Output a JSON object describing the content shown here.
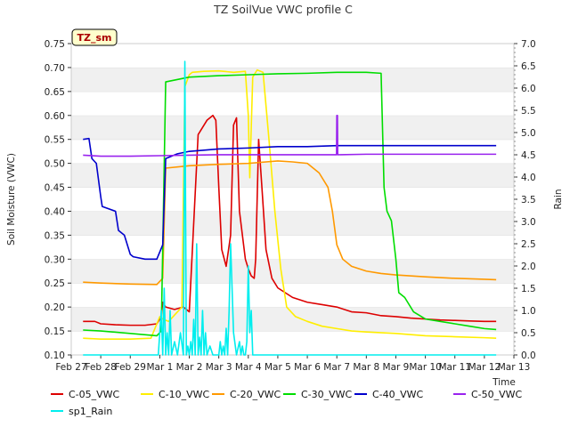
{
  "chart_data": {
    "type": "line",
    "title": "TZ SoilVue VWC profile C",
    "ylabel": "Soil Moisture (VWC)",
    "y2label": "Rain",
    "xlabel": "Time",
    "badge": "TZ_sm",
    "ylim": [
      0.1,
      0.75
    ],
    "y2lim": [
      0.0,
      7.0
    ],
    "xlim": [
      0,
      15
    ],
    "x_ticks": [
      {
        "v": 0,
        "label": "Feb 27"
      },
      {
        "v": 1,
        "label": "Feb 28"
      },
      {
        "v": 2,
        "label": "Feb 29"
      },
      {
        "v": 3,
        "label": "Mar 1"
      },
      {
        "v": 4,
        "label": "Mar 2"
      },
      {
        "v": 5,
        "label": "Mar 3"
      },
      {
        "v": 6,
        "label": "Mar 4"
      },
      {
        "v": 7,
        "label": "Mar 5"
      },
      {
        "v": 8,
        "label": "Mar 6"
      },
      {
        "v": 9,
        "label": "Mar 7"
      },
      {
        "v": 10,
        "label": "Mar 8"
      },
      {
        "v": 11,
        "label": "Mar 9"
      },
      {
        "v": 12,
        "label": "Mar 10"
      },
      {
        "v": 13,
        "label": "Mar 11"
      },
      {
        "v": 14,
        "label": "Mar 12"
      },
      {
        "v": 15,
        "label": "Mar 13"
      }
    ],
    "y_ticks": [
      "0.10",
      "0.15",
      "0.20",
      "0.25",
      "0.30",
      "0.35",
      "0.40",
      "0.45",
      "0.50",
      "0.55",
      "0.60",
      "0.65",
      "0.70",
      "0.75"
    ],
    "y2_ticks": [
      "0.0",
      "0.5",
      "1.0",
      "1.5",
      "2.0",
      "2.5",
      "3.0",
      "3.5",
      "4.0",
      "4.5",
      "5.0",
      "5.5",
      "6.0",
      "6.5",
      "7.0"
    ],
    "grid": "horizontal bands",
    "legend_position": "bottom",
    "series": [
      {
        "name": "C-05_VWC",
        "color": "#dd0000",
        "axis": "left",
        "x": [
          0.4,
          0.8,
          1.0,
          1.5,
          2.0,
          2.5,
          2.9,
          3.05,
          3.1,
          3.2,
          3.5,
          3.8,
          4.0,
          4.3,
          4.6,
          4.8,
          4.9,
          5.0,
          5.1,
          5.25,
          5.4,
          5.5,
          5.6,
          5.7,
          5.9,
          6.0,
          6.1,
          6.2,
          6.25,
          6.35,
          6.45,
          6.6,
          6.8,
          7.0,
          7.5,
          8.0,
          8.5,
          9.0,
          9.5,
          10.0,
          10.5,
          11.0,
          11.5,
          12.0,
          12.5,
          13.0,
          13.5,
          14.0,
          14.4
        ],
        "y": [
          0.17,
          0.17,
          0.165,
          0.163,
          0.162,
          0.162,
          0.165,
          0.18,
          0.21,
          0.2,
          0.195,
          0.2,
          0.19,
          0.56,
          0.59,
          0.6,
          0.59,
          0.45,
          0.32,
          0.285,
          0.35,
          0.58,
          0.595,
          0.4,
          0.3,
          0.28,
          0.265,
          0.26,
          0.3,
          0.55,
          0.46,
          0.32,
          0.26,
          0.24,
          0.22,
          0.21,
          0.205,
          0.2,
          0.19,
          0.188,
          0.182,
          0.18,
          0.177,
          0.175,
          0.173,
          0.172,
          0.171,
          0.17,
          0.17
        ]
      },
      {
        "name": "C-10_VWC",
        "color": "#ffee00",
        "axis": "left",
        "x": [
          0.4,
          1.0,
          2.0,
          2.7,
          3.0,
          3.1,
          3.3,
          3.6,
          3.75,
          3.85,
          4.0,
          4.1,
          4.5,
          5.0,
          5.5,
          5.9,
          6.0,
          6.05,
          6.15,
          6.3,
          6.5,
          6.7,
          6.9,
          7.1,
          7.3,
          7.6,
          8.0,
          8.5,
          9.0,
          9.5,
          10.0,
          11.0,
          12.0,
          13.0,
          14.0,
          14.4
        ],
        "y": [
          0.135,
          0.133,
          0.133,
          0.135,
          0.18,
          0.175,
          0.17,
          0.19,
          0.2,
          0.66,
          0.685,
          0.69,
          0.692,
          0.693,
          0.69,
          0.692,
          0.6,
          0.47,
          0.68,
          0.695,
          0.69,
          0.55,
          0.4,
          0.28,
          0.2,
          0.18,
          0.17,
          0.16,
          0.155,
          0.15,
          0.148,
          0.145,
          0.14,
          0.138,
          0.136,
          0.135
        ]
      },
      {
        "name": "C-20_VWC",
        "color": "#ff9900",
        "axis": "left",
        "x": [
          0.4,
          1.0,
          2.0,
          2.9,
          3.1,
          3.2,
          4.0,
          5.0,
          6.0,
          7.0,
          7.5,
          8.0,
          8.4,
          8.7,
          8.85,
          9.0,
          9.2,
          9.5,
          10.0,
          10.5,
          11.0,
          12.0,
          13.0,
          14.0,
          14.4
        ],
        "y": [
          0.252,
          0.25,
          0.248,
          0.247,
          0.26,
          0.49,
          0.495,
          0.498,
          0.5,
          0.505,
          0.503,
          0.5,
          0.48,
          0.45,
          0.4,
          0.33,
          0.3,
          0.285,
          0.275,
          0.27,
          0.267,
          0.263,
          0.26,
          0.258,
          0.257
        ]
      },
      {
        "name": "C-30_VWC",
        "color": "#00dd00",
        "axis": "left",
        "x": [
          0.4,
          1.0,
          2.0,
          2.9,
          3.05,
          3.2,
          4.0,
          5.0,
          6.0,
          7.0,
          8.0,
          9.0,
          10.0,
          10.5,
          10.6,
          10.7,
          10.85,
          11.0,
          11.1,
          11.3,
          11.6,
          12.0,
          12.5,
          13.0,
          13.5,
          14.0,
          14.4
        ],
        "y": [
          0.152,
          0.15,
          0.145,
          0.14,
          0.15,
          0.67,
          0.68,
          0.683,
          0.685,
          0.687,
          0.688,
          0.69,
          0.69,
          0.688,
          0.45,
          0.4,
          0.38,
          0.3,
          0.23,
          0.22,
          0.19,
          0.175,
          0.17,
          0.165,
          0.16,
          0.155,
          0.153
        ]
      },
      {
        "name": "C-40_VWC",
        "color": "#0000cc",
        "axis": "left",
        "x": [
          0.4,
          0.6,
          0.7,
          0.85,
          1.0,
          1.05,
          1.5,
          1.6,
          1.8,
          2.0,
          2.1,
          2.5,
          2.9,
          3.1,
          3.2,
          3.6,
          4.0,
          5.0,
          6.0,
          7.0,
          8.0,
          9.0,
          10.0,
          11.0,
          12.0,
          13.0,
          14.0,
          14.4
        ],
        "y": [
          0.55,
          0.552,
          0.51,
          0.5,
          0.43,
          0.41,
          0.4,
          0.36,
          0.35,
          0.31,
          0.305,
          0.3,
          0.3,
          0.33,
          0.51,
          0.52,
          0.525,
          0.53,
          0.532,
          0.535,
          0.535,
          0.537,
          0.537,
          0.537,
          0.537,
          0.537,
          0.537,
          0.537
        ]
      },
      {
        "name": "C-50_VWC",
        "color": "#9922ee",
        "axis": "left",
        "x": [
          0.4,
          1.0,
          2.0,
          3.0,
          4.0,
          5.0,
          6.0,
          7.0,
          8.0,
          8.99,
          9.0,
          9.02,
          9.03,
          10.0,
          11.0,
          12.0,
          13.0,
          14.0,
          14.4
        ],
        "y": [
          0.517,
          0.515,
          0.515,
          0.516,
          0.517,
          0.518,
          0.518,
          0.518,
          0.518,
          0.518,
          0.6,
          0.6,
          0.518,
          0.519,
          0.519,
          0.519,
          0.519,
          0.519,
          0.519
        ]
      },
      {
        "name": "sp1_Rain",
        "color": "#00eeee",
        "axis": "right",
        "x": [
          0.4,
          2.95,
          3.05,
          3.1,
          3.15,
          3.2,
          3.25,
          3.3,
          3.35,
          3.4,
          3.5,
          3.6,
          3.7,
          3.8,
          3.85,
          3.9,
          3.95,
          4.0,
          4.05,
          4.1,
          4.15,
          4.2,
          4.25,
          4.3,
          4.35,
          4.4,
          4.45,
          4.5,
          4.55,
          4.6,
          4.7,
          4.8,
          4.9,
          5.0,
          5.05,
          5.1,
          5.15,
          5.2,
          5.25,
          5.3,
          5.35,
          5.4,
          5.5,
          5.6,
          5.7,
          5.75,
          5.8,
          5.85,
          5.9,
          5.95,
          6.0,
          6.05,
          6.1,
          6.15,
          6.2,
          6.3,
          14.4
        ],
        "y": [
          0.0,
          0.0,
          1.0,
          0.0,
          1.5,
          0.0,
          0.5,
          0.0,
          1.0,
          0.0,
          0.3,
          0.0,
          0.5,
          0.0,
          6.6,
          0.0,
          0.2,
          0.0,
          0.3,
          0.0,
          0.8,
          0.0,
          2.5,
          0.0,
          0.4,
          0.0,
          1.0,
          0.0,
          0.5,
          0.0,
          0.2,
          0.0,
          0.0,
          0.0,
          0.3,
          0.0,
          0.2,
          0.0,
          0.6,
          0.0,
          1.0,
          2.5,
          0.5,
          0.0,
          0.3,
          0.0,
          0.2,
          0.0,
          0.0,
          0.3,
          2.0,
          0.5,
          1.0,
          0.0,
          0.0,
          0.0,
          0.0
        ]
      }
    ]
  }
}
